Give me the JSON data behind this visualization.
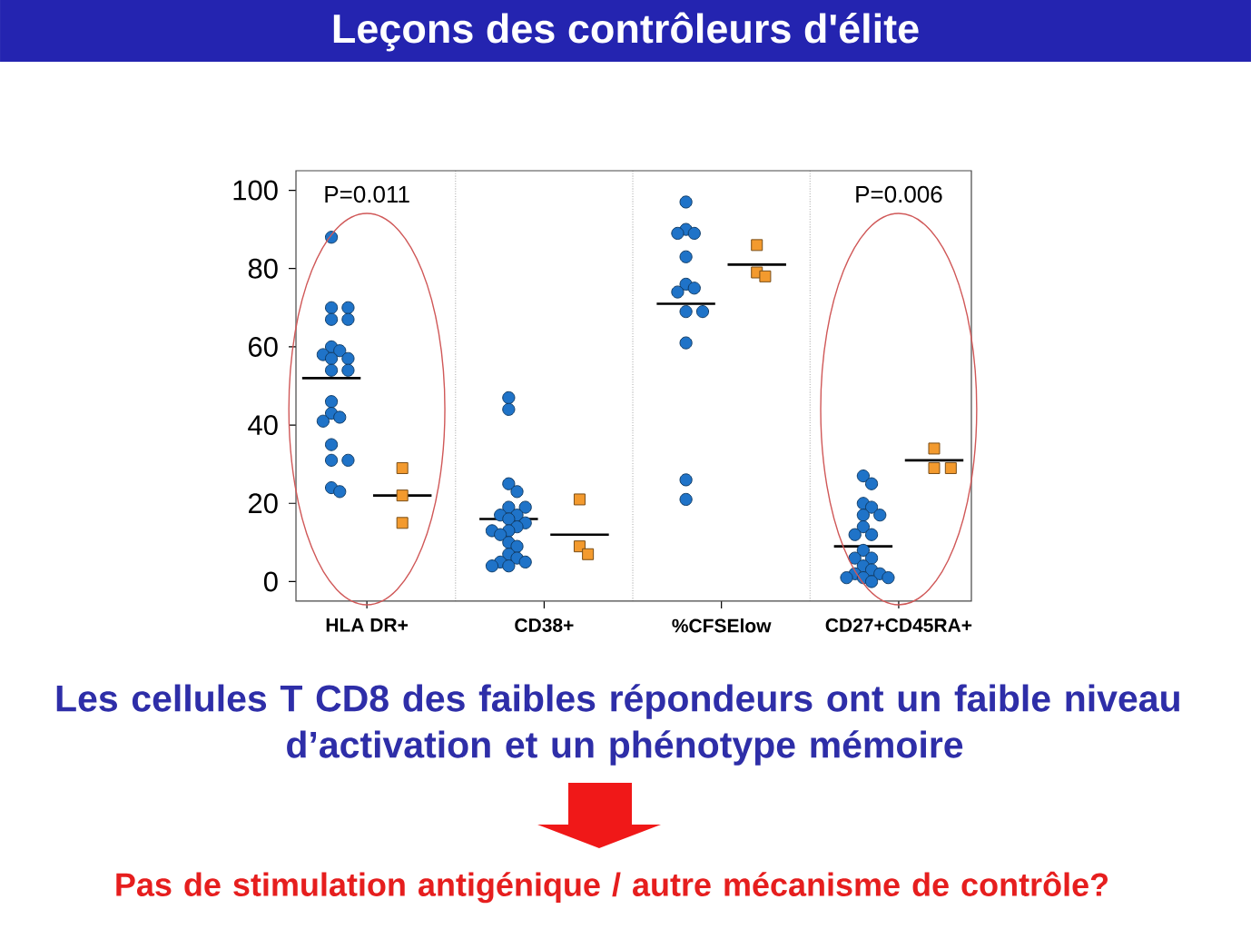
{
  "chart_data": {
    "type": "scatter",
    "title": "Leçons des contrôleurs d'élite",
    "categories": [
      "HLA DR+",
      "CD38+",
      "%CFSElow",
      "CD27+CD45RA+"
    ],
    "series": [
      {
        "color": "#1f73c8",
        "marker": "circle",
        "x": [
          "HLA DR+",
          "HLA DR+",
          "HLA DR+",
          "HLA DR+",
          "HLA DR+",
          "HLA DR+",
          "HLA DR+",
          "HLA DR+",
          "HLA DR+",
          "HLA DR+",
          "HLA DR+",
          "HLA DR+",
          "HLA DR+",
          "HLA DR+",
          "HLA DR+",
          "HLA DR+",
          "HLA DR+",
          "HLA DR+",
          "HLA DR+",
          "HLA DR+",
          "HLA DR+",
          "CD38+",
          "CD38+",
          "CD38+",
          "CD38+",
          "CD38+",
          "CD38+",
          "CD38+",
          "CD38+",
          "CD38+",
          "CD38+",
          "CD38+",
          "CD38+",
          "CD38+",
          "CD38+",
          "CD38+",
          "CD38+",
          "CD38+",
          "CD38+",
          "CD38+",
          "CD38+",
          "CD38+",
          "CD38+",
          "%CFSElow",
          "%CFSElow",
          "%CFSElow",
          "%CFSElow",
          "%CFSElow",
          "%CFSElow",
          "%CFSElow",
          "%CFSElow",
          "%CFSElow",
          "%CFSElow",
          "%CFSElow",
          "%CFSElow",
          "%CFSElow",
          "CD27+CD45RA+",
          "CD27+CD45RA+",
          "CD27+CD45RA+",
          "CD27+CD45RA+",
          "CD27+CD45RA+",
          "CD27+CD45RA+",
          "CD27+CD45RA+",
          "CD27+CD45RA+",
          "CD27+CD45RA+",
          "CD27+CD45RA+",
          "CD27+CD45RA+",
          "CD27+CD45RA+",
          "CD27+CD45RA+",
          "CD27+CD45RA+",
          "CD27+CD45RA+",
          "CD27+CD45RA+",
          "CD27+CD45RA+",
          "CD27+CD45RA+",
          "CD27+CD45RA+",
          "CD27+CD45RA+"
        ],
        "values": [
          88,
          70,
          70,
          67,
          67,
          60,
          59,
          58,
          57,
          57,
          54,
          54,
          46,
          43,
          42,
          41,
          35,
          31,
          31,
          24,
          23,
          47,
          44,
          25,
          23,
          19,
          19,
          17,
          17,
          16,
          15,
          14,
          13,
          13,
          12,
          10,
          9,
          7,
          6,
          5,
          5,
          4,
          4,
          97,
          90,
          89,
          89,
          83,
          76,
          75,
          74,
          69,
          69,
          61,
          26,
          21,
          27,
          25,
          20,
          19,
          17,
          17,
          14,
          12,
          12,
          8,
          6,
          6,
          4,
          3,
          2,
          2,
          1,
          1,
          1,
          0
        ]
      },
      {
        "color": "#f39a2e",
        "marker": "square",
        "x": [
          "HLA DR+",
          "HLA DR+",
          "HLA DR+",
          "CD38+",
          "CD38+",
          "CD38+",
          "%CFSElow",
          "%CFSElow",
          "%CFSElow",
          "CD27+CD45RA+",
          "CD27+CD45RA+",
          "CD27+CD45RA+"
        ],
        "values": [
          29,
          22,
          15,
          21,
          9,
          7,
          86,
          79,
          78,
          34,
          29,
          29
        ]
      }
    ],
    "ref_lines": [
      {
        "axis": "y",
        "value": 52,
        "color": "#000000"
      },
      {
        "axis": "y",
        "value": 22,
        "color": "#000000"
      },
      {
        "axis": "y",
        "value": 16,
        "color": "#000000"
      },
      {
        "axis": "y",
        "value": 12,
        "color": "#000000"
      },
      {
        "axis": "y",
        "value": 71,
        "color": "#000000"
      },
      {
        "axis": "y",
        "value": 81,
        "color": "#000000"
      },
      {
        "axis": "y",
        "value": 9,
        "color": "#000000"
      },
      {
        "axis": "y",
        "value": 31,
        "color": "#000000"
      }
    ],
    "ylim": [
      -5,
      105
    ],
    "yticks": [
      0,
      20,
      40,
      60,
      80,
      100
    ],
    "grid": "x",
    "annotations": [
      "P=0.011",
      "P=0.006",
      "Les cellules T CD8 des faibles répondeurs ont un faible niveau d’activation et un phénotype mémoire",
      "Pas de stimulation antigénique / autre mécanisme de contrôle?"
    ]
  }
}
